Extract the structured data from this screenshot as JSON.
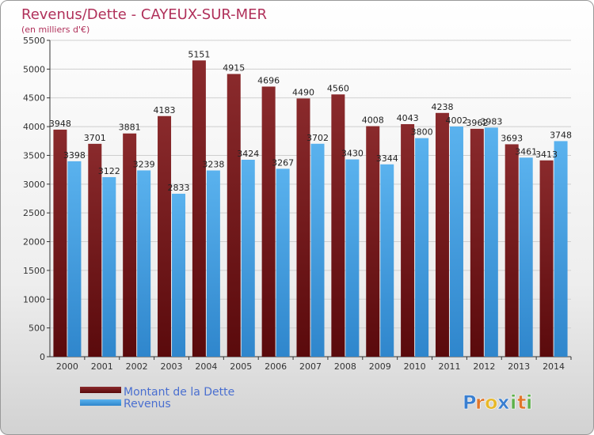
{
  "chart_data": {
    "type": "bar",
    "title": "Revenus/Dette - CAYEUX-SUR-MER",
    "subtitle": "(en milliers d'€)",
    "categories": [
      "2000",
      "2001",
      "2002",
      "2003",
      "2004",
      "2005",
      "2006",
      "2007",
      "2008",
      "2009",
      "2010",
      "2011",
      "2012",
      "2013",
      "2014"
    ],
    "series": [
      {
        "name": "Montant de la Dette",
        "color": "#7a1a1c",
        "values": [
          3948,
          3701,
          3881,
          4183,
          5151,
          4915,
          4696,
          4490,
          4560,
          4008,
          4043,
          4238,
          3962,
          3693,
          3413
        ],
        "labels": [
          "3948",
          "3701",
          "3881",
          "4183",
          "5151",
          "4915",
          "4696",
          "4490",
          "4560",
          "4008",
          "4043",
          "4238",
          "3962",
          "3693",
          "3413"
        ]
      },
      {
        "name": "Revenus",
        "color": "#4aa8e8",
        "values": [
          3398,
          3122,
          3239,
          2833,
          3238,
          3424,
          3267,
          3702,
          3430,
          3344,
          3800,
          4002,
          3983,
          3461,
          3748
        ],
        "labels": [
          "3398",
          "3122",
          "3239",
          "2833",
          "3238",
          "3424",
          "3267",
          "3702",
          "3430",
          "3344",
          "3800",
          "4002",
          "3983",
          "3461",
          "3748"
        ]
      }
    ],
    "ylim": [
      0,
      5500
    ],
    "yticks": [
      0,
      500,
      1000,
      1500,
      2000,
      2500,
      3000,
      3500,
      4000,
      4500,
      5000,
      5500
    ],
    "grid": true,
    "legend": "bottom-left"
  },
  "logo": {
    "letters": [
      "P",
      "r",
      "o",
      "x",
      "i",
      "t",
      "i"
    ],
    "colors": [
      "#3a7fd0",
      "#e0762a",
      "#e7b82a",
      "#3a7fd0",
      "#5db04a",
      "#e0762a",
      "#5db04a"
    ]
  }
}
